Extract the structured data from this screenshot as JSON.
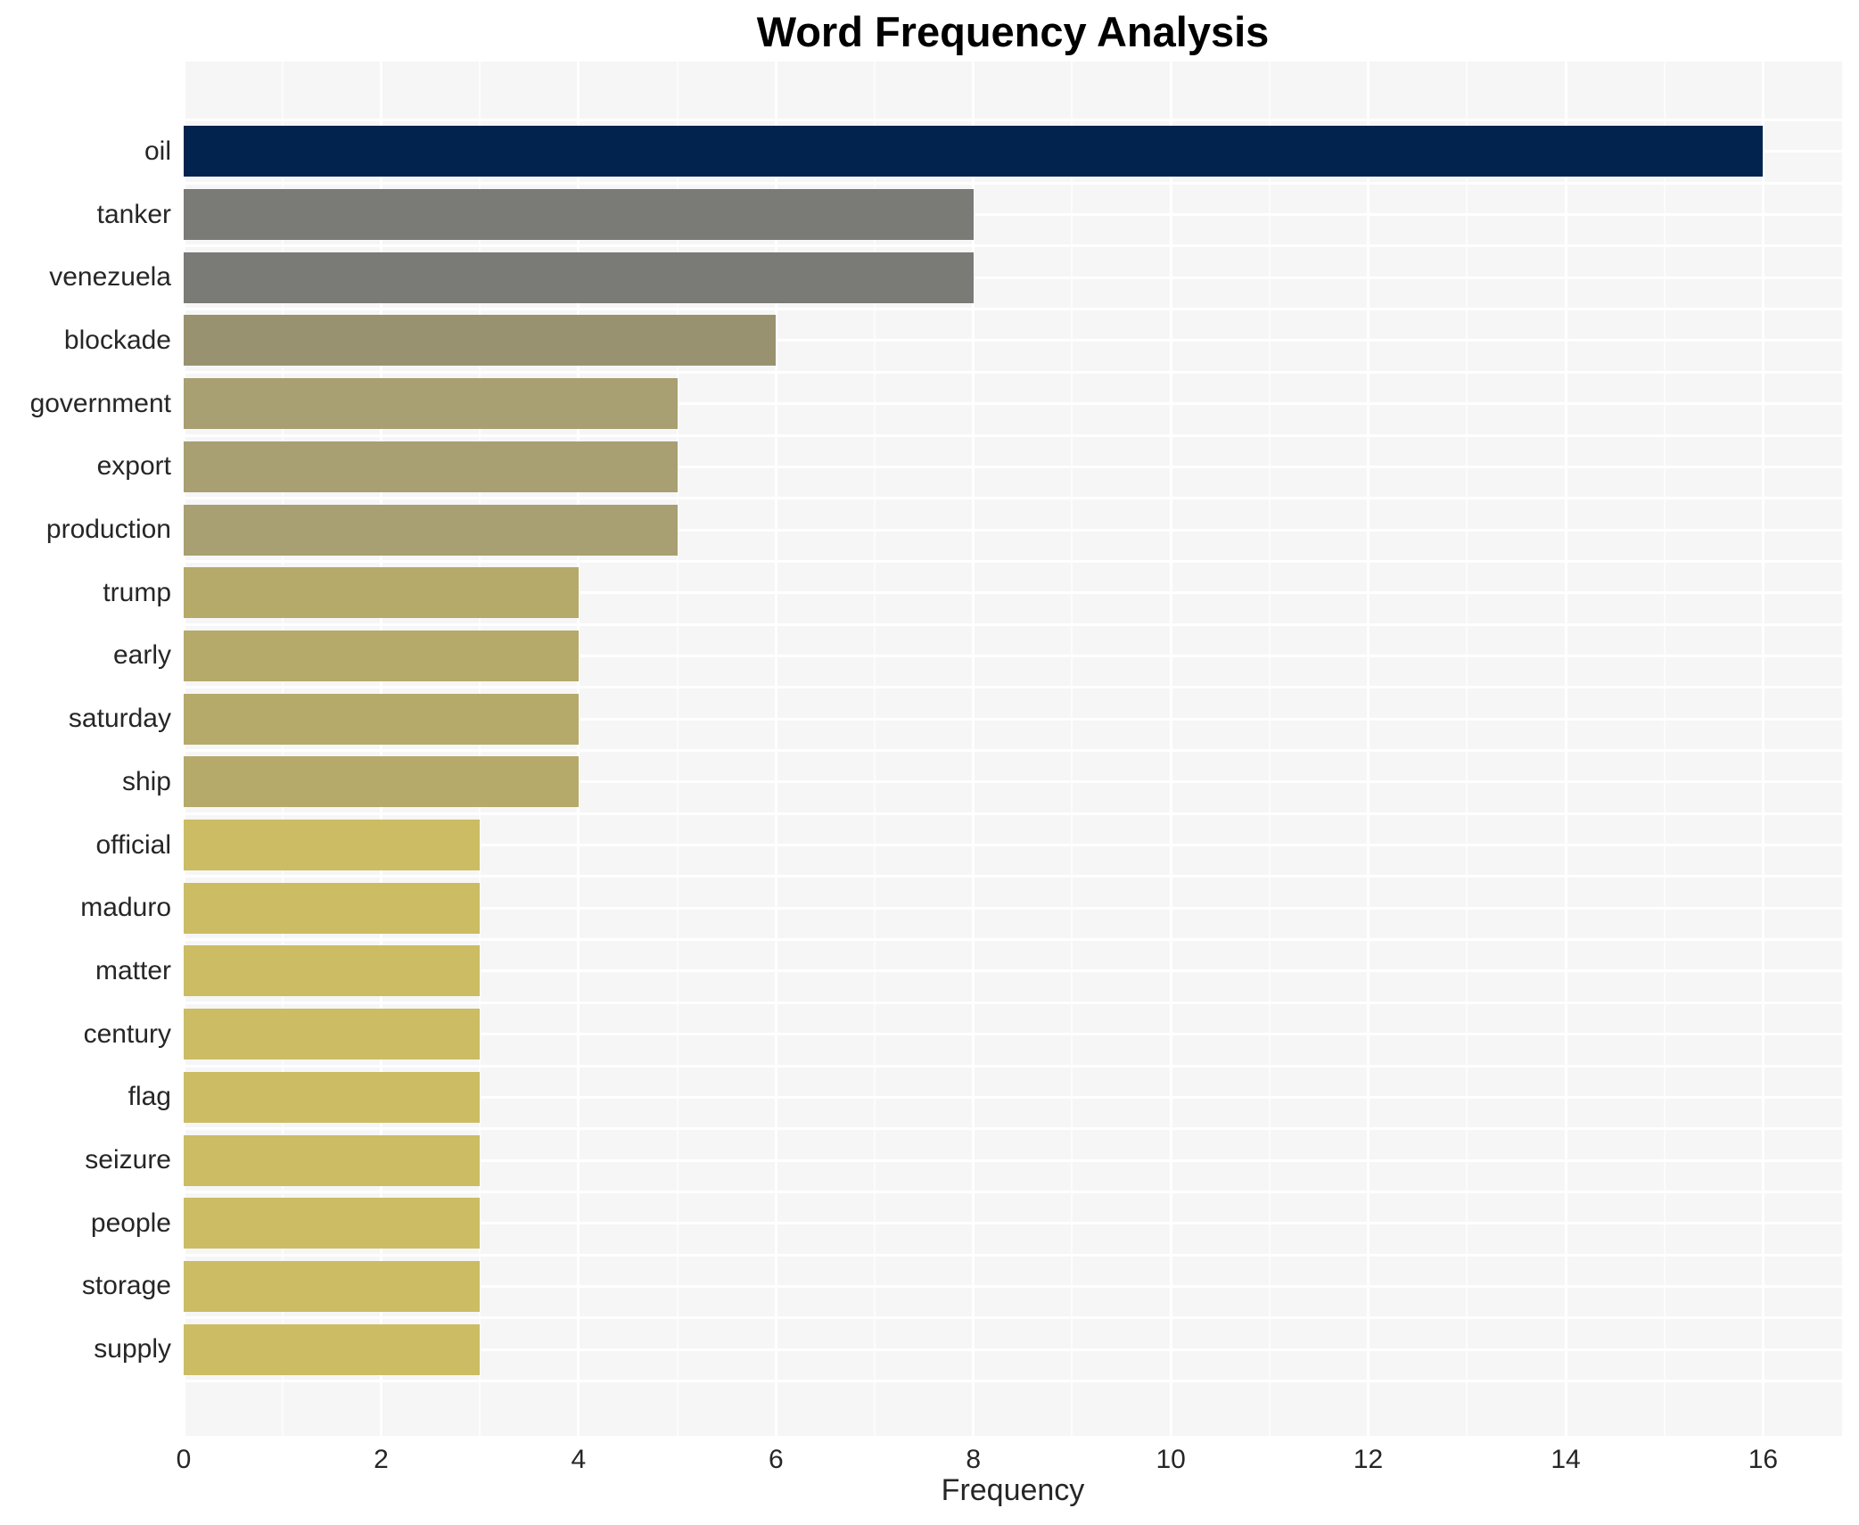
{
  "title": "Word Frequency Analysis",
  "chart_data": {
    "type": "bar",
    "orientation": "horizontal",
    "title": "Word Frequency Analysis",
    "xlabel": "Frequency",
    "ylabel": "",
    "categories": [
      "oil",
      "tanker",
      "venezuela",
      "blockade",
      "government",
      "export",
      "production",
      "trump",
      "early",
      "saturday",
      "ship",
      "official",
      "maduro",
      "matter",
      "century",
      "flag",
      "seizure",
      "people",
      "storage",
      "supply"
    ],
    "values": [
      16,
      8,
      8,
      6,
      5,
      5,
      5,
      4,
      4,
      4,
      4,
      3,
      3,
      3,
      3,
      3,
      3,
      3,
      3,
      3
    ],
    "bar_colors": [
      "#02234E",
      "#7A7A76",
      "#7A7A76",
      "#999270",
      "#A89F72",
      "#A89F72",
      "#A89F72",
      "#B5AA6A",
      "#B5AA6A",
      "#B5AA6A",
      "#B5AA6A",
      "#CCBC64",
      "#CCBC64",
      "#CCBC64",
      "#CCBC64",
      "#CCBC64",
      "#CCBC64",
      "#CCBC64",
      "#CCBC64",
      "#CCBC64"
    ],
    "xticks": [
      0,
      2,
      4,
      6,
      8,
      10,
      12,
      14,
      16
    ],
    "xminor_ticks": [
      1,
      3,
      5,
      7,
      9,
      11,
      13,
      15
    ],
    "xlim": [
      0,
      16.8
    ],
    "grid": true,
    "legend": false,
    "panel_bg": "#F6F6F7",
    "grid_color": "#FFFFFF",
    "text_color": "#262626"
  }
}
